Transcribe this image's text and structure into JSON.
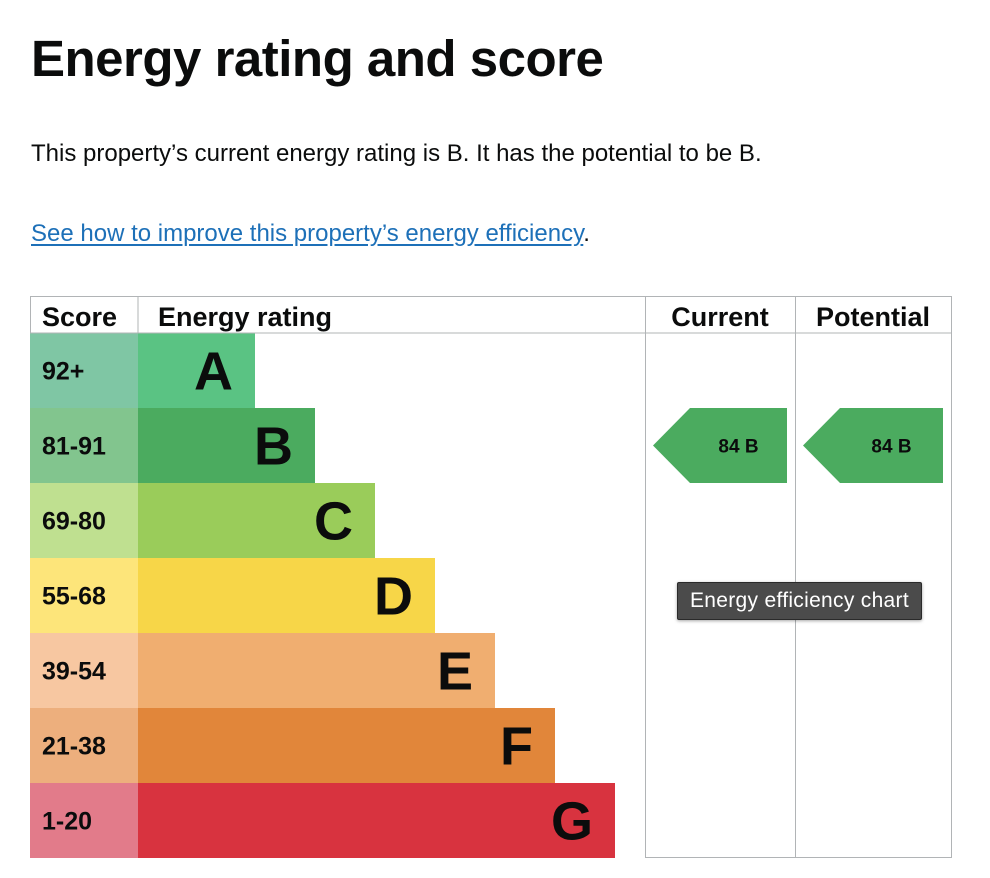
{
  "title": "Energy rating and score",
  "summary": "This property’s current energy rating is B. It has the potential to be B.",
  "improve_link": {
    "text": "See how to improve this property’s energy efficiency",
    "suffix": "."
  },
  "tooltip": "Energy efficiency chart",
  "chart_data": {
    "type": "bar",
    "headers": {
      "score": "Score",
      "rating": "Energy rating",
      "current": "Current",
      "potential": "Potential"
    },
    "bands": [
      {
        "letter": "A",
        "score": "92+",
        "color": "#5ac383",
        "score_color": "#7fc6a4",
        "relative_width": 1
      },
      {
        "letter": "B",
        "score": "81-91",
        "color": "#4bab5f",
        "score_color": "#82c58e",
        "relative_width": 2
      },
      {
        "letter": "C",
        "score": "69-80",
        "color": "#9acc5a",
        "score_color": "#bfe090",
        "relative_width": 3
      },
      {
        "letter": "D",
        "score": "55-68",
        "color": "#f7d648",
        "score_color": "#fde57a",
        "relative_width": 4
      },
      {
        "letter": "E",
        "score": "39-54",
        "color": "#f0ae70",
        "score_color": "#f7c7a1",
        "relative_width": 5
      },
      {
        "letter": "F",
        "score": "21-38",
        "color": "#e1863a",
        "score_color": "#edaf7d",
        "relative_width": 6
      },
      {
        "letter": "G",
        "score": "1-20",
        "color": "#d8333f",
        "score_color": "#e27b8a",
        "relative_width": 7
      }
    ],
    "current": {
      "score": 84,
      "band": "B",
      "label": "84  B",
      "color": "#4bab5f"
    },
    "potential": {
      "score": 84,
      "band": "B",
      "label": "84  B",
      "color": "#4bab5f"
    }
  }
}
